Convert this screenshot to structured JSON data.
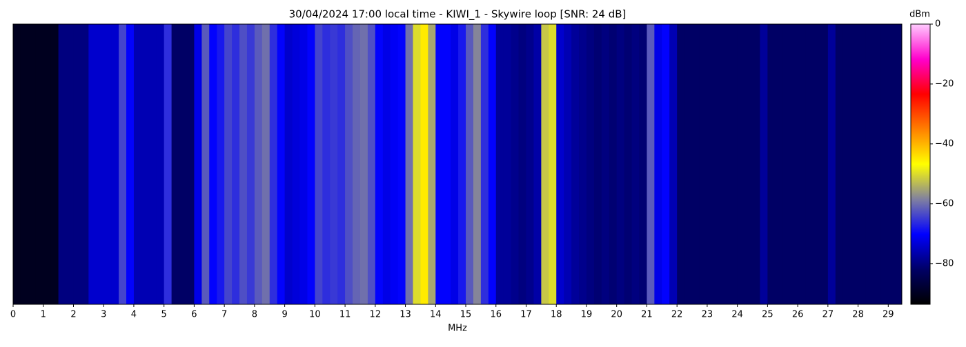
{
  "chart_data": {
    "type": "spectrogram",
    "title": "30/04/2024 17:00 local time - KIWI_1 - Skywire loop [SNR: 24 dB]",
    "xlabel": "MHz",
    "colorbar_label": "dBm",
    "bin_width": 0.25,
    "values": [
      -90,
      -90,
      -90,
      -90,
      -90,
      -90,
      -80,
      -80,
      -80,
      -80,
      -74,
      -74,
      -74,
      -74,
      -64,
      -70,
      -76,
      -76,
      -76,
      -76,
      -66,
      -82,
      -82,
      -82,
      -72,
      -62,
      -70,
      -68,
      -64,
      -66,
      -63,
      -65,
      -62,
      -60,
      -66,
      -70,
      -74,
      -73,
      -72,
      -70,
      -64,
      -66,
      -65,
      -66,
      -63,
      -61,
      -60,
      -63,
      -70,
      -72,
      -71,
      -70,
      -60,
      -50,
      -45,
      -55,
      -70,
      -70,
      -72,
      -68,
      -62,
      -58,
      -66,
      -70,
      -78,
      -78,
      -79,
      -80,
      -79,
      -77,
      -52,
      -50,
      -74,
      -76,
      -78,
      -79,
      -80,
      -81,
      -80,
      -81,
      -80,
      -81,
      -80,
      -81,
      -62,
      -72,
      -70,
      -76,
      -82,
      -82,
      -82,
      -82,
      -82,
      -82,
      -82,
      -82,
      -82,
      -82,
      -82,
      -78,
      -82,
      -82,
      -82,
      -82,
      -82,
      -82,
      -82,
      -82,
      -78,
      -82,
      -82,
      -82,
      -82,
      -82,
      -82,
      -82,
      -82,
      -82,
      -82,
      -82
    ],
    "xlim": [
      0,
      29.45
    ],
    "xticks": [
      0,
      1,
      2,
      3,
      4,
      5,
      6,
      7,
      8,
      9,
      10,
      11,
      12,
      13,
      14,
      15,
      16,
      17,
      18,
      19,
      20,
      21,
      22,
      23,
      24,
      25,
      26,
      27,
      28,
      29
    ],
    "clim": [
      -93.6,
      0
    ],
    "cticks": [
      {
        "value": -80,
        "label": "−80"
      },
      {
        "value": -60,
        "label": "−60"
      },
      {
        "value": -40,
        "label": "−40"
      },
      {
        "value": -20,
        "label": "−20"
      },
      0
    ],
    "colormap": [
      "#000000",
      "#000066",
      "#0000ff",
      "#8080a0",
      "#ffff00",
      "#ff8000",
      "#ff0000",
      "#ff00cc",
      "#ffccff"
    ]
  }
}
